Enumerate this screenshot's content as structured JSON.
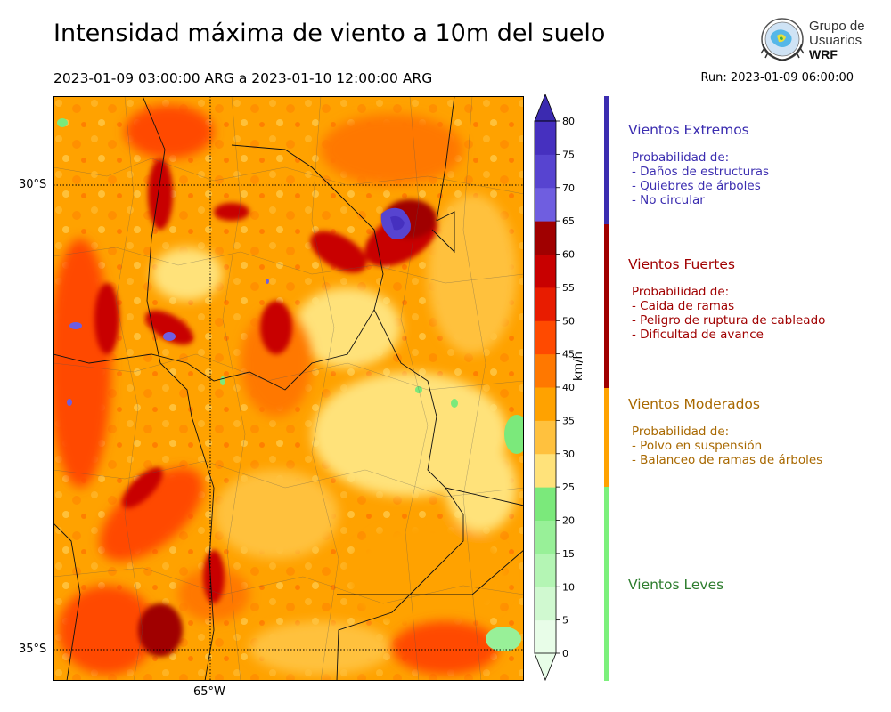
{
  "title": "Intensidad máxima de viento a 10m del suelo",
  "period": "2023-01-09 03:00:00 ARG  a  2023-01-10 12:00:00 ARG",
  "run": "Run: 2023-01-09 06:00:00",
  "logo": {
    "line1": "Grupo de",
    "line2": "Usuarios",
    "line3": "WRF"
  },
  "map": {
    "lat_labels": [
      "30°S",
      "35°S"
    ],
    "lon_labels": [
      "65°W"
    ]
  },
  "colorbar": {
    "unit": "km/h",
    "ticks": [
      "0",
      "5",
      "10",
      "15",
      "20",
      "25",
      "30",
      "35",
      "40",
      "45",
      "50",
      "55",
      "60",
      "65",
      "70",
      "75",
      "80"
    ],
    "colors": [
      "#e8fde8",
      "#d0f9d0",
      "#b4f5b4",
      "#98f098",
      "#7be97b",
      "#ffe27a",
      "#ffc13e",
      "#ffa200",
      "#ff7800",
      "#ff4a00",
      "#e81c00",
      "#c80000",
      "#a00000",
      "#6f5ee0",
      "#5744d0",
      "#4630bf",
      "#3b2ab0"
    ]
  },
  "categories": [
    {
      "name": "Vientos Extremos",
      "color": "#3b2db0",
      "bar_color": "#3b2db0",
      "lines": [
        "Probabilidad de:",
        "- Daños de estructuras",
        "- Quiebres de árboles",
        "- No circular"
      ]
    },
    {
      "name": "Vientos Fuertes",
      "color": "#a00000",
      "bar_color": "#a00000",
      "lines": [
        "Probabilidad de:",
        "- Caida de ramas",
        "- Peligro de ruptura de cableado",
        "- Dificultad de avance"
      ]
    },
    {
      "name": "Vientos Moderados",
      "color": "#a86800",
      "bar_color": "#ffa200",
      "lines": [
        "Probabilidad de:",
        "- Polvo en suspensión",
        "- Balanceo de ramas de árboles"
      ]
    },
    {
      "name": "Vientos Leves",
      "color": "#2e7d2e",
      "bar_color": "#7cf07c",
      "lines": []
    }
  ]
}
